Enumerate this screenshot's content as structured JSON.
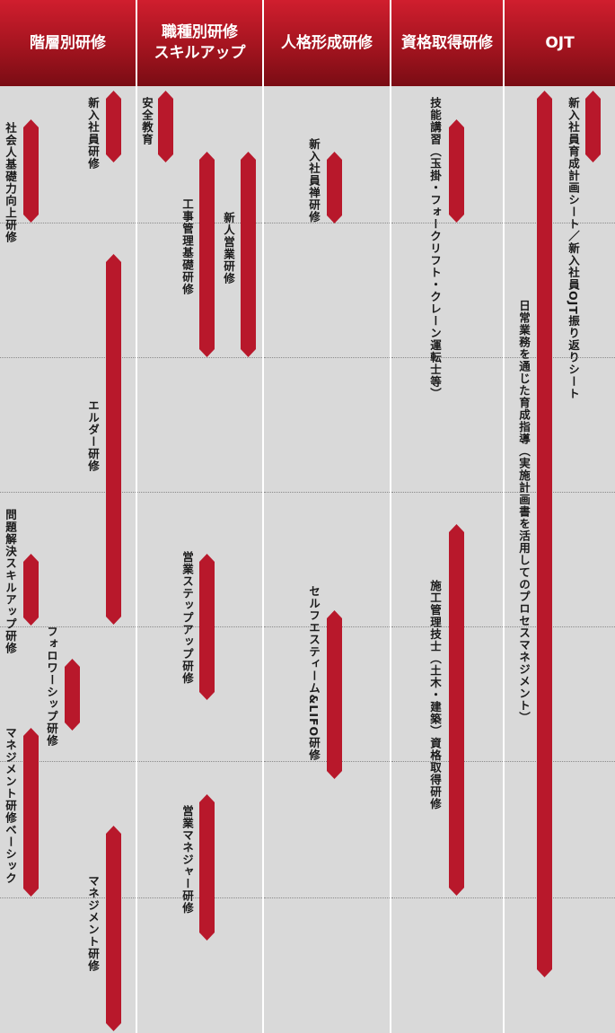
{
  "columns": [
    {
      "title": "階層別研修"
    },
    {
      "title_line1": "職種別研修",
      "title_line2": "スキルアップ"
    },
    {
      "title": "人格形成研修"
    },
    {
      "title": "資格取得研修"
    },
    {
      "title": "OJT"
    }
  ],
  "col1": {
    "new_employee": "新入社員研修",
    "basic_ability": "社会人基礎力向上研修",
    "elder": "エルダー研修",
    "problem_solving": "問題解決スキルアップ研修",
    "followership": "フォロワーシップ研修",
    "management_basic": "マネジメント研修ベーシック",
    "management": "マネジメント研修"
  },
  "col2": {
    "safety": "安全教育",
    "construction_mgmt": "工事管理基礎研修",
    "new_sales": "新人営業研修",
    "sales_stepup": "営業ステップアップ研修",
    "sales_manager": "営業マネジャー研修"
  },
  "col3": {
    "zen": "新入社員禅研修",
    "self_esteem": "セルフエスティーム&LIFO研修"
  },
  "col4": {
    "skill_course": "技能講習（玉掛・フォークリフト・クレーン運転士等）",
    "construction_engineer": "施工管理技士（土木・建築）資格取得研修"
  },
  "col5": {
    "training_sheet": "新入社員育成計画シート／新入社員OJT振り返りシート",
    "daily_guidance": "日常業務を通じた育成指導（実施計画書を活用してのプロセスマネジメント）"
  }
}
